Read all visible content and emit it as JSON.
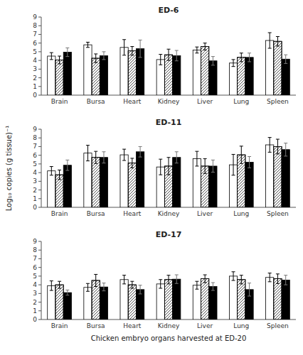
{
  "chart_data": [
    {
      "type": "bar",
      "title": "ED-6",
      "categories": [
        "Brain",
        "Bursa",
        "Heart",
        "Kidney",
        "Liver",
        "Lung",
        "Spleen"
      ],
      "series": [
        {
          "color": "white",
          "values": [
            4.5,
            5.8,
            5.5,
            4.1,
            5.2,
            3.7,
            6.3
          ],
          "errors": [
            0.4,
            0.3,
            0.9,
            0.6,
            0.35,
            0.4,
            0.9
          ]
        },
        {
          "color": "white",
          "values": [
            4.05,
            4.25,
            5.1,
            4.65,
            5.6,
            4.35,
            6.2
          ],
          "errors": [
            0.45,
            0.5,
            0.5,
            0.65,
            0.4,
            0.5,
            0.55
          ]
        },
        {
          "color": "black",
          "values": [
            4.95,
            4.55,
            5.35,
            4.55,
            3.95,
            4.35,
            4.15
          ],
          "errors": [
            0.5,
            0.45,
            1.0,
            0.6,
            0.5,
            0.5,
            0.5
          ]
        }
      ],
      "ylim": [
        0,
        9
      ],
      "yticks": [
        0,
        1,
        2,
        3,
        4,
        5,
        6,
        7,
        8,
        9
      ]
    },
    {
      "type": "bar",
      "title": "ED-11",
      "categories": [
        "Brain",
        "Bursa",
        "Heart",
        "Kidney",
        "Liver",
        "Lung",
        "Spleen"
      ],
      "series": [
        {
          "color": "white",
          "values": [
            4.2,
            6.25,
            6.05,
            4.65,
            5.6,
            4.9,
            7.2
          ],
          "errors": [
            0.5,
            0.9,
            0.65,
            0.9,
            0.85,
            1.2,
            0.85
          ]
        },
        {
          "color": "white",
          "values": [
            3.75,
            5.75,
            5.1,
            4.75,
            4.75,
            6.05,
            7.0
          ],
          "errors": [
            0.55,
            0.7,
            0.55,
            1.0,
            0.85,
            1.0,
            0.85
          ]
        },
        {
          "color": "black",
          "values": [
            4.85,
            5.75,
            6.4,
            5.75,
            4.75,
            5.2,
            6.65
          ],
          "errors": [
            0.6,
            0.65,
            0.6,
            0.65,
            0.7,
            0.65,
            0.75
          ]
        }
      ],
      "ylabel": "Log₁₀ copies (g tissue)⁻¹",
      "ylim": [
        0,
        9
      ],
      "yticks": [
        0,
        1,
        2,
        3,
        4,
        5,
        6,
        7,
        8,
        9
      ]
    },
    {
      "type": "bar",
      "title": "ED-17",
      "categories": [
        "Brain",
        "Bursa",
        "Heart",
        "Kidney",
        "Liver",
        "Lung",
        "Spleen"
      ],
      "series": [
        {
          "color": "white",
          "values": [
            3.9,
            3.7,
            4.6,
            4.1,
            3.95,
            5.0,
            4.85
          ],
          "errors": [
            0.55,
            0.45,
            0.5,
            0.5,
            0.45,
            0.5,
            0.5
          ]
        },
        {
          "color": "white",
          "values": [
            4.0,
            4.5,
            4.0,
            4.6,
            4.7,
            4.6,
            4.7
          ],
          "errors": [
            0.4,
            0.7,
            0.4,
            0.5,
            0.45,
            0.5,
            0.55
          ]
        },
        {
          "color": "black",
          "values": [
            3.1,
            3.75,
            3.45,
            4.65,
            3.8,
            3.45,
            4.55
          ],
          "errors": [
            0.3,
            0.45,
            0.5,
            0.5,
            0.45,
            0.75,
            0.55
          ]
        }
      ],
      "xlabel": "Chicken embryo organs harvested at ED-20",
      "ylim": [
        0,
        9
      ],
      "yticks": [
        0,
        1,
        2,
        3,
        4,
        5,
        6,
        7,
        8,
        9
      ]
    }
  ]
}
